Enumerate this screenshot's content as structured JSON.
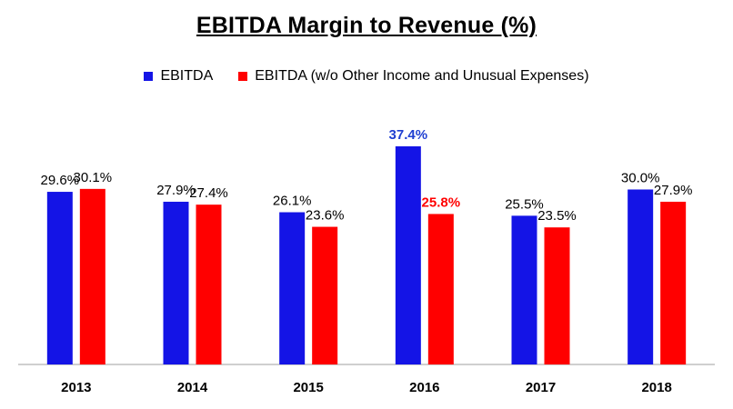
{
  "chart_data": {
    "type": "bar",
    "title": "EBITDA Margin to Revenue (%)",
    "xlabel": "",
    "ylabel": "",
    "ylim": [
      0,
      40
    ],
    "grid": false,
    "legend_position": "top-center",
    "categories": [
      "2013",
      "2014",
      "2015",
      "2016",
      "2017",
      "2018"
    ],
    "series": [
      {
        "name": "EBITDA",
        "color": "#1414e6",
        "values": [
          29.6,
          27.9,
          26.1,
          37.4,
          25.5,
          30.0
        ],
        "labels": [
          "29.6%",
          "27.9%",
          "26.1%",
          "37.4%",
          "25.5%",
          "30.0%"
        ]
      },
      {
        "name": "EBITDA (w/o Other Income and Unusual Expenses)",
        "color": "#ff0000",
        "values": [
          30.1,
          27.4,
          23.6,
          25.8,
          23.5,
          27.9
        ],
        "labels": [
          "30.1%",
          "27.4%",
          "23.6%",
          "25.8%",
          "23.5%",
          "27.9%"
        ]
      }
    ],
    "annotations": [
      {
        "category": "2016",
        "series": "EBITDA",
        "label": "37.4%",
        "style": "bold",
        "color": "#1f3fd1"
      },
      {
        "category": "2016",
        "series": "EBITDA (w/o Other Income and Unusual Expenses)",
        "label": "25.8%",
        "style": "bold",
        "color": "#ff0000"
      }
    ]
  }
}
